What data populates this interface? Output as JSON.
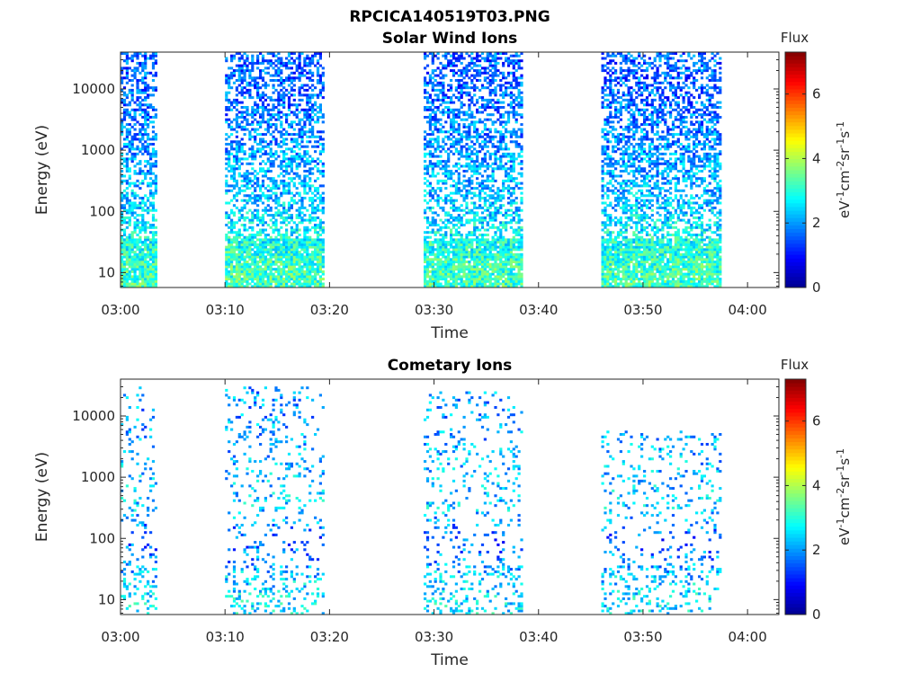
{
  "figure": {
    "suptitle": "RPCICA140519T03.PNG"
  },
  "colormap": [
    "#00008f",
    "#0000ff",
    "#0080ff",
    "#00ffff",
    "#80ff80",
    "#ffff00",
    "#ff8000",
    "#ff0000",
    "#800000"
  ],
  "chart_data": [
    {
      "type": "heatmap",
      "title": "Solar Wind Ions",
      "xlabel": "Time",
      "ylabel": "Energy (eV)",
      "yscale": "log",
      "xlim": [
        "03:00",
        "04:03"
      ],
      "ylim": [
        5.7,
        40000
      ],
      "xticks": [
        "03:00",
        "03:10",
        "03:20",
        "03:30",
        "03:40",
        "03:50",
        "04:00"
      ],
      "yticks": [
        10,
        100,
        1000,
        10000
      ],
      "ytick_labels": [
        "10",
        "100",
        "1000",
        "10000"
      ],
      "colorbar": {
        "label_top": "Flux",
        "units": "eV-1cm-2sr-1s-1",
        "range": [
          0,
          7.3
        ],
        "ticks": [
          "0",
          "2",
          "4",
          "6"
        ]
      },
      "intervals": [
        {
          "start": "03:00",
          "end": "03:03",
          "emax": 40000
        },
        {
          "start": "03:10",
          "end": "03:19",
          "emax": 40000
        },
        {
          "start": "03:29",
          "end": "03:38",
          "emax": 40000
        },
        {
          "start": "03:46",
          "end": "03:57",
          "emax": 40000
        }
      ],
      "flux_by_energy": [
        {
          "energy": 10,
          "flux": 3.2
        },
        {
          "energy": 30,
          "flux": 2.9
        },
        {
          "energy": 100,
          "flux": 2.4
        },
        {
          "energy": 300,
          "flux": 2.2
        },
        {
          "energy": 1000,
          "flux": 2.0
        },
        {
          "energy": 10000,
          "flux": 1.6
        }
      ],
      "fill_fraction": 0.5
    },
    {
      "type": "heatmap",
      "title": "Cometary Ions",
      "xlabel": "Time",
      "ylabel": "Energy (eV)",
      "yscale": "log",
      "xlim": [
        "03:00",
        "04:03"
      ],
      "ylim": [
        5.7,
        40000
      ],
      "xticks": [
        "03:00",
        "03:10",
        "03:20",
        "03:30",
        "03:40",
        "03:50",
        "04:00"
      ],
      "yticks": [
        10,
        100,
        1000,
        10000
      ],
      "ytick_labels": [
        "10",
        "100",
        "1000",
        "10000"
      ],
      "colorbar": {
        "label_top": "Flux",
        "units": "eV-1cm-2sr-1s-1",
        "range": [
          0,
          7.3
        ],
        "ticks": [
          "0",
          "2",
          "4",
          "6"
        ]
      },
      "intervals": [
        {
          "start": "03:00",
          "end": "03:03",
          "emax": 30000
        },
        {
          "start": "03:10",
          "end": "03:19",
          "emax": 30000
        },
        {
          "start": "03:29",
          "end": "03:38",
          "emax": 25000
        },
        {
          "start": "03:46",
          "end": "03:57",
          "emax": 6000
        }
      ],
      "flux_by_energy": [
        {
          "energy": 10,
          "flux": 2.6
        },
        {
          "energy": 30,
          "flux": 2.2
        },
        {
          "energy": 100,
          "flux": 1.5
        },
        {
          "energy": 300,
          "flux": 2.4
        },
        {
          "energy": 1000,
          "flux": 2.3
        },
        {
          "energy": 10000,
          "flux": 2.0
        }
      ],
      "fill_fraction": 0.12
    }
  ]
}
